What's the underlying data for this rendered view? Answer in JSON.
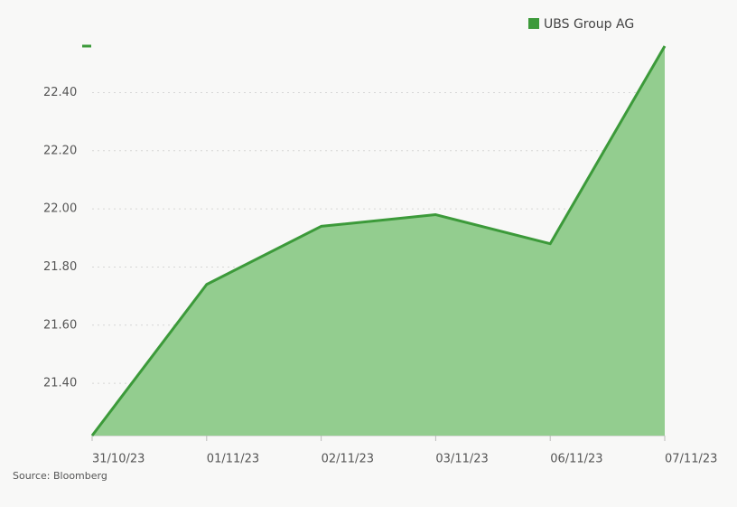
{
  "chart_data": {
    "type": "area",
    "legend": "top-right",
    "source": "Source: Bloomberg",
    "categories": [
      "31/10/23",
      "01/11/23",
      "02/11/23",
      "03/11/23",
      "06/11/23",
      "07/11/23"
    ],
    "series": [
      {
        "name": "UBS Group AG",
        "color": "#3c9a3a",
        "fill": "#93cd8f",
        "values": [
          21.22,
          21.74,
          21.94,
          21.98,
          21.88,
          22.56
        ]
      }
    ],
    "ylim": [
      21.22,
      22.56
    ],
    "yticks": [
      {
        "value": 21.4,
        "label": "21.40"
      },
      {
        "value": 21.6,
        "label": "21.60"
      },
      {
        "value": 21.8,
        "label": "21.80"
      },
      {
        "value": 22.0,
        "label": "22.00"
      },
      {
        "value": 22.2,
        "label": "22.20"
      },
      {
        "value": 22.4,
        "label": "22.40"
      }
    ],
    "grid": true
  }
}
